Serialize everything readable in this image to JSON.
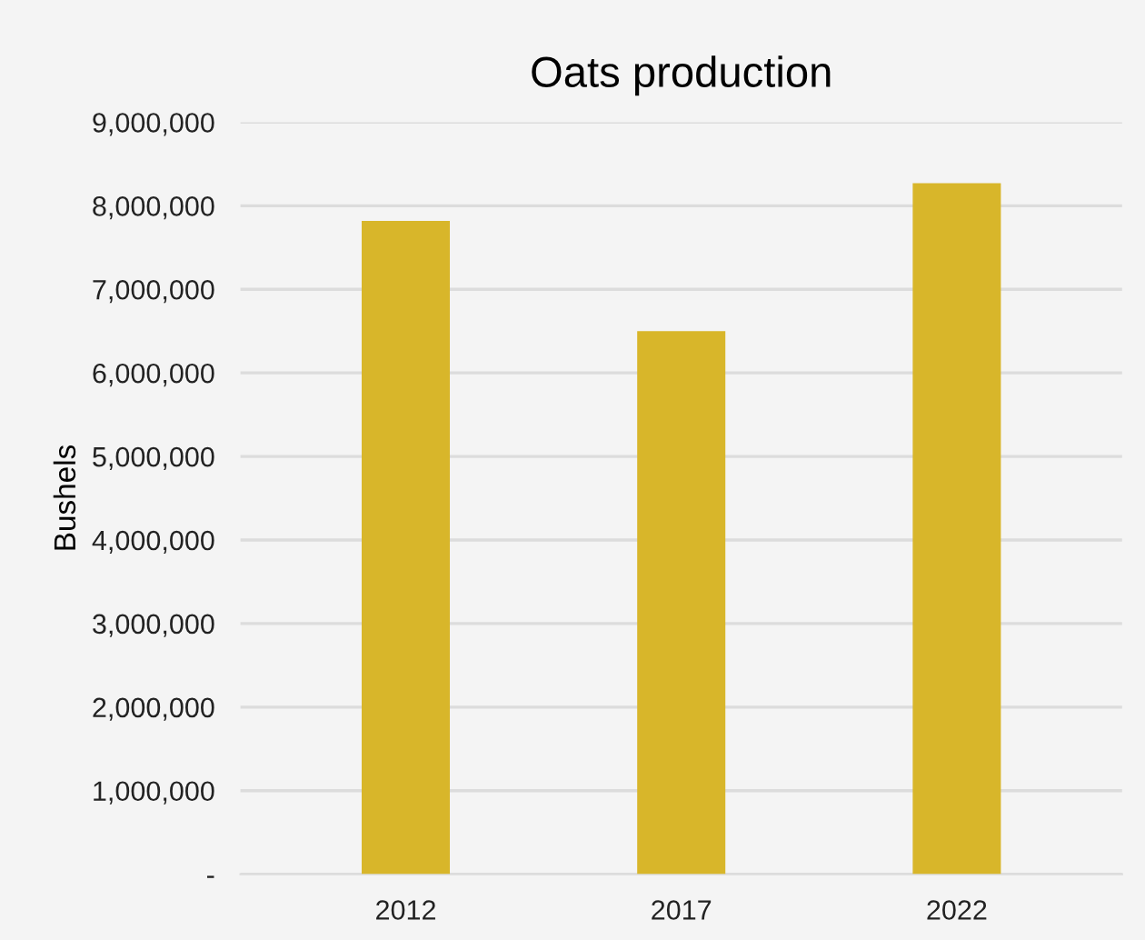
{
  "chart_data": {
    "type": "bar",
    "title": "Oats production",
    "ylabel": "Bushels",
    "categories": [
      "2012",
      "2017",
      "2022"
    ],
    "values": [
      7820000,
      6500000,
      8270000
    ],
    "color": "#d8b62a",
    "ylim": [
      0,
      9000000
    ],
    "yticks": [
      {
        "value": 0,
        "label": "-"
      },
      {
        "value": 1000000,
        "label": "1,000,000"
      },
      {
        "value": 2000000,
        "label": "2,000,000"
      },
      {
        "value": 3000000,
        "label": "3,000,000"
      },
      {
        "value": 4000000,
        "label": "4,000,000"
      },
      {
        "value": 5000000,
        "label": "5,000,000"
      },
      {
        "value": 6000000,
        "label": "6,000,000"
      },
      {
        "value": 7000000,
        "label": "7,000,000"
      },
      {
        "value": 8000000,
        "label": "8,000,000"
      },
      {
        "value": 9000000,
        "label": "9,000,000"
      }
    ],
    "grid": "y",
    "legend": false
  }
}
